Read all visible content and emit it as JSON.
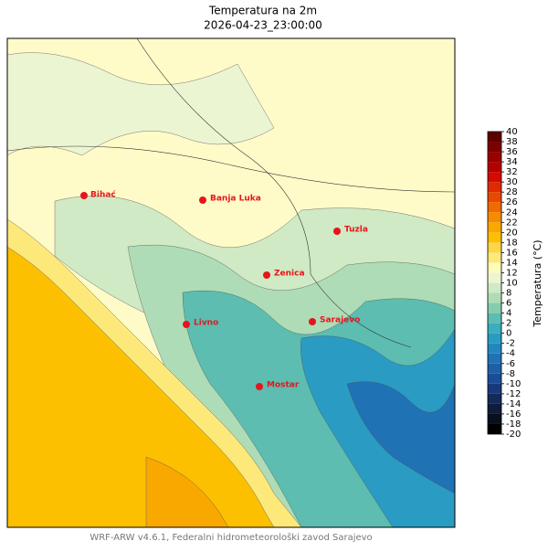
{
  "header": {
    "title": "Temperatura na 2m",
    "subtitle": "2026-04-23_23:00:00"
  },
  "cities": [
    {
      "label": "Bihać"
    },
    {
      "label": "Banja Luka"
    },
    {
      "label": "Tuzla"
    },
    {
      "label": "Zenica"
    },
    {
      "label": "Sarajevo"
    },
    {
      "label": "Livno"
    },
    {
      "label": "Mostar"
    }
  ],
  "colorbar": {
    "label": "Temperatura (°C)",
    "ticks": [
      -20,
      -18,
      -16,
      -14,
      -12,
      -10,
      -8,
      -6,
      -4,
      -2,
      0,
      2,
      4,
      6,
      8,
      10,
      12,
      14,
      16,
      18,
      20,
      22,
      24,
      26,
      28,
      30,
      32,
      34,
      36,
      38,
      40
    ],
    "colors": [
      "#000000",
      "#0a0f1e",
      "#101c3a",
      "#142a5a",
      "#183a7c",
      "#1b4c96",
      "#1d5fa8",
      "#1f72b3",
      "#2387bd",
      "#2a9bc2",
      "#3aaebc",
      "#5cbdb0",
      "#86cdae",
      "#aedcb6",
      "#cfeac4",
      "#ecf5d2",
      "#fffbb8",
      "#fde87a",
      "#fdd548",
      "#fcc000",
      "#f9a800",
      "#f68b00",
      "#f06a00",
      "#e84800",
      "#e02a00",
      "#d20c00",
      "#b50000",
      "#980000",
      "#7c0000",
      "#600000"
    ]
  },
  "footer": "WRF-ARW v4.6.1, Federalni hidrometeorološki zavod Sarajevo"
}
